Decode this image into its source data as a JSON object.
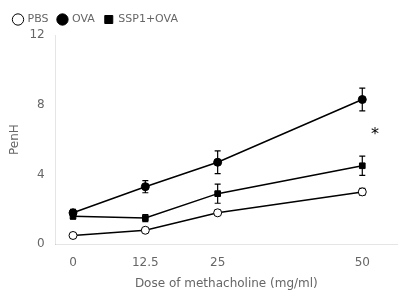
{
  "chart_data": {
    "type": "line",
    "x": [
      0,
      12.5,
      25,
      50
    ],
    "series": [
      {
        "name": "PBS",
        "color": "black",
        "marker": "circle_open",
        "values": [
          0.5,
          0.8,
          1.8,
          3.0
        ],
        "yerr": [
          0.15,
          0.1,
          0.15,
          0.2
        ]
      },
      {
        "name": "OVA",
        "color": "black",
        "marker": "circle",
        "values": [
          1.8,
          3.3,
          4.7,
          8.3
        ],
        "yerr": [
          0.2,
          0.35,
          0.65,
          0.65
        ]
      },
      {
        "name": "SSP1+OVA",
        "color": "black",
        "marker": "square",
        "values": [
          1.6,
          1.5,
          2.9,
          4.5
        ],
        "yerr": [
          0.15,
          0.2,
          0.55,
          0.55
        ]
      }
    ],
    "xlabel": "Dose of methacholine (mg/ml)",
    "ylabel": "PenH",
    "xlim": [
      -3,
      56
    ],
    "xticks": [
      0,
      12.5,
      25,
      50
    ],
    "ylim": [
      0,
      12
    ],
    "yticks": [
      0,
      4,
      8,
      12
    ],
    "annotations": [
      {
        "text": "*",
        "x": 51.5,
        "y": 6.3
      }
    ],
    "legend": "upper left",
    "grid": false
  }
}
